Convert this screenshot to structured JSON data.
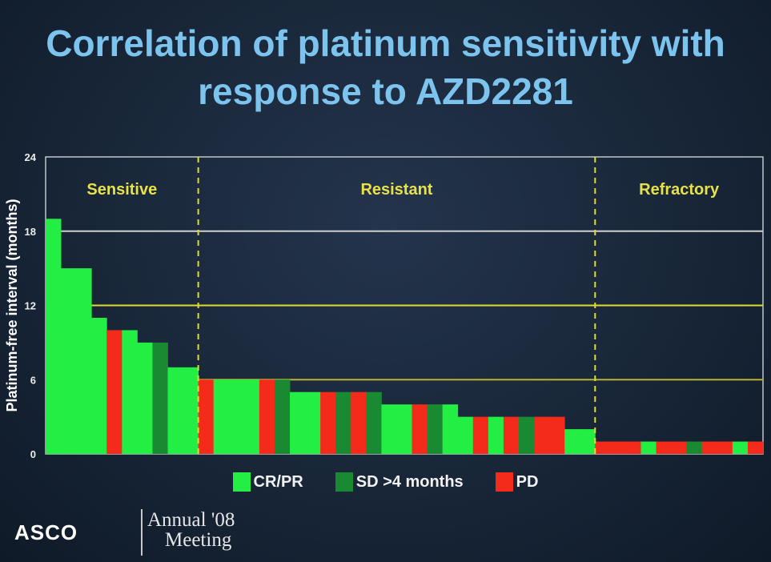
{
  "header": {
    "title_line1": "Correlation of platinum sensitivity with",
    "title_line2": "response to AZD2281"
  },
  "legend": [
    {
      "label": "CR/PR",
      "color": "#22ee44"
    },
    {
      "label": "SD >4 months",
      "color": "#1a8a32"
    },
    {
      "label": "PD",
      "color": "#f42a1a"
    }
  ],
  "footer": {
    "logo": "ASCO",
    "meeting_line1": "Annual '08",
    "meeting_line2": "Meeting"
  },
  "chart_data": {
    "type": "bar",
    "title": "",
    "xlabel": "",
    "ylabel": "Platinum-free interval (months)",
    "ylim": [
      0,
      24
    ],
    "yticks": [
      0,
      6,
      12,
      18,
      24
    ],
    "grid": true,
    "legend_position": "bottom",
    "reference_lines": [
      {
        "y": 18,
        "color": "#d0d0d0"
      },
      {
        "y": 12,
        "color": "#e0dc30"
      },
      {
        "y": 6,
        "color": "#b8b430"
      }
    ],
    "groups": [
      {
        "label": "Sensitive",
        "start_index": 0,
        "end_index": 9
      },
      {
        "label": "Resistant",
        "start_index": 10,
        "end_index": 35
      },
      {
        "label": "Refractory",
        "start_index": 36,
        "end_index": 46
      }
    ],
    "colors": {
      "CR/PR": "#22ee44",
      "SD >4 months": "#1a8a32",
      "PD": "#f42a1a"
    },
    "bars": [
      {
        "value": 19,
        "response": "CR/PR"
      },
      {
        "value": 15,
        "response": "CR/PR"
      },
      {
        "value": 15,
        "response": "CR/PR"
      },
      {
        "value": 11,
        "response": "CR/PR"
      },
      {
        "value": 10,
        "response": "PD"
      },
      {
        "value": 10,
        "response": "CR/PR"
      },
      {
        "value": 9,
        "response": "CR/PR"
      },
      {
        "value": 9,
        "response": "SD >4 months"
      },
      {
        "value": 7,
        "response": "CR/PR"
      },
      {
        "value": 7,
        "response": "CR/PR"
      },
      {
        "value": 6,
        "response": "PD"
      },
      {
        "value": 6,
        "response": "CR/PR"
      },
      {
        "value": 6,
        "response": "CR/PR"
      },
      {
        "value": 6,
        "response": "CR/PR"
      },
      {
        "value": 6,
        "response": "PD"
      },
      {
        "value": 6,
        "response": "SD >4 months"
      },
      {
        "value": 5,
        "response": "CR/PR"
      },
      {
        "value": 5,
        "response": "CR/PR"
      },
      {
        "value": 5,
        "response": "PD"
      },
      {
        "value": 5,
        "response": "SD >4 months"
      },
      {
        "value": 5,
        "response": "PD"
      },
      {
        "value": 5,
        "response": "SD >4 months"
      },
      {
        "value": 4,
        "response": "CR/PR"
      },
      {
        "value": 4,
        "response": "CR/PR"
      },
      {
        "value": 4,
        "response": "PD"
      },
      {
        "value": 4,
        "response": "SD >4 months"
      },
      {
        "value": 4,
        "response": "CR/PR"
      },
      {
        "value": 3,
        "response": "CR/PR"
      },
      {
        "value": 3,
        "response": "PD"
      },
      {
        "value": 3,
        "response": "CR/PR"
      },
      {
        "value": 3,
        "response": "PD"
      },
      {
        "value": 3,
        "response": "SD >4 months"
      },
      {
        "value": 3,
        "response": "PD"
      },
      {
        "value": 3,
        "response": "PD"
      },
      {
        "value": 2,
        "response": "CR/PR"
      },
      {
        "value": 2,
        "response": "CR/PR"
      },
      {
        "value": 1,
        "response": "PD"
      },
      {
        "value": 1,
        "response": "PD"
      },
      {
        "value": 1,
        "response": "PD"
      },
      {
        "value": 1,
        "response": "CR/PR"
      },
      {
        "value": 1,
        "response": "PD"
      },
      {
        "value": 1,
        "response": "PD"
      },
      {
        "value": 1,
        "response": "SD >4 months"
      },
      {
        "value": 1,
        "response": "PD"
      },
      {
        "value": 1,
        "response": "PD"
      },
      {
        "value": 1,
        "response": "CR/PR"
      },
      {
        "value": 1,
        "response": "PD"
      }
    ]
  }
}
